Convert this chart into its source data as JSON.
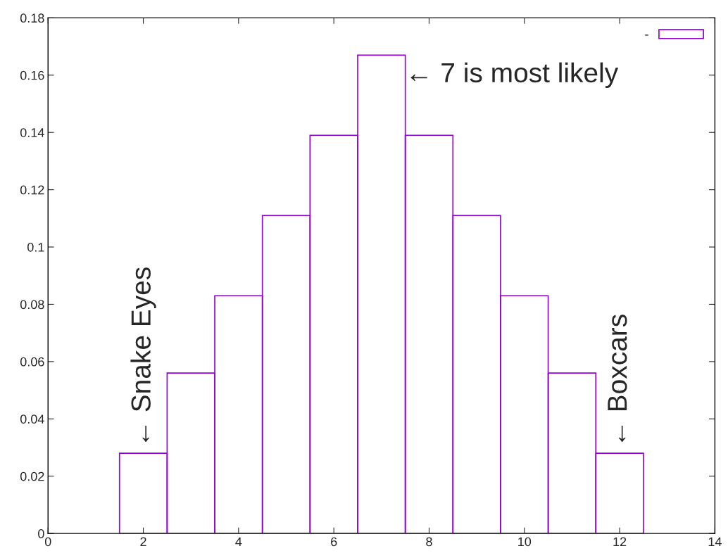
{
  "chart_data": {
    "type": "histogram",
    "bins": [
      1.5,
      2.5,
      3.5,
      4.5,
      5.5,
      6.5,
      7.5,
      8.5,
      9.5,
      10.5,
      11.5,
      12.5
    ],
    "series": [
      {
        "name": "-",
        "color": "#9400d3",
        "values": [
          0.028,
          0.056,
          0.083,
          0.111,
          0.139,
          0.167,
          0.139,
          0.111,
          0.083,
          0.056,
          0.028
        ]
      }
    ],
    "xlim": [
      0,
      14
    ],
    "xticks": [
      0,
      2,
      4,
      6,
      8,
      10,
      12,
      14
    ],
    "ylim": [
      0,
      0.18
    ],
    "yticks": [
      0,
      0.02,
      0.04,
      0.06,
      0.08,
      0.1,
      0.12,
      0.14,
      0.16,
      0.18
    ],
    "grid": false,
    "legend": "top right",
    "annotations": [
      {
        "text": "← 7 is most likely",
        "x": 7.5,
        "y": 0.16
      },
      {
        "text": "← Snake Eyes",
        "x": 2,
        "y": 0.028
      },
      {
        "text": "← Boxcars",
        "x": 12,
        "y": 0.028
      }
    ]
  }
}
